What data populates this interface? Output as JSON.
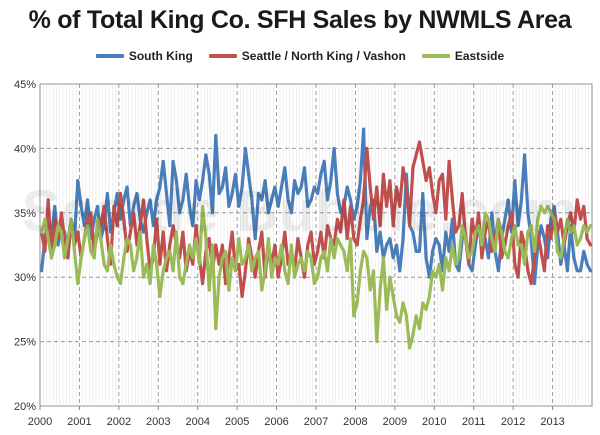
{
  "watermark": "Seattle Bubble.com",
  "chart_data": {
    "type": "line",
    "title": "% of Total King Co. SFH Sales by NWMLS Area",
    "xlabel": "",
    "ylabel": "",
    "ylim": [
      20,
      45
    ],
    "y_ticks": [
      "20%",
      "25%",
      "30%",
      "35%",
      "40%",
      "45%"
    ],
    "y_tick_values": [
      20,
      25,
      30,
      35,
      40,
      45
    ],
    "x_tick_labels": [
      "2000",
      "2001",
      "2002",
      "2003",
      "2004",
      "2005",
      "2006",
      "2007",
      "2008",
      "2009",
      "2010",
      "2011",
      "2012",
      "2013"
    ],
    "x_start_year": 2000,
    "months": 168,
    "grid": true,
    "legend_position": "top",
    "series": [
      {
        "name": "South King",
        "color": "#4a7ebb",
        "values": [
          30.5,
          33.0,
          34.5,
          33.0,
          35.5,
          32.5,
          34.0,
          33.5,
          31.5,
          34.5,
          33.0,
          37.5,
          35.5,
          34.0,
          36.0,
          33.0,
          34.5,
          35.5,
          33.0,
          34.0,
          36.5,
          33.5,
          35.0,
          36.5,
          34.5,
          36.0,
          37.0,
          34.0,
          35.5,
          36.5,
          34.5,
          33.5,
          35.0,
          36.0,
          34.0,
          36.0,
          37.0,
          39.0,
          36.5,
          34.0,
          39.0,
          37.5,
          35.0,
          36.0,
          38.0,
          35.5,
          34.0,
          37.5,
          36.0,
          37.5,
          39.5,
          38.0,
          35.0,
          41.0,
          36.5,
          37.0,
          38.5,
          35.5,
          36.5,
          38.0,
          35.5,
          37.0,
          40.0,
          38.0,
          36.0,
          33.0,
          36.5,
          36.0,
          37.5,
          35.0,
          36.0,
          37.0,
          35.5,
          37.0,
          38.5,
          36.0,
          35.0,
          37.5,
          36.5,
          37.0,
          38.5,
          35.5,
          36.0,
          37.0,
          36.5,
          38.0,
          39.0,
          36.0,
          37.5,
          40.0,
          36.5,
          35.0,
          35.5,
          37.0,
          36.0,
          34.5,
          35.5,
          37.5,
          41.5,
          33.0,
          35.5,
          36.0,
          32.0,
          33.5,
          31.5,
          32.5,
          33.0,
          31.5,
          32.5,
          30.5,
          33.0,
          38.0,
          34.0,
          33.5,
          32.0,
          32.0,
          36.5,
          31.5,
          30.0,
          32.0,
          33.0,
          32.5,
          30.5,
          33.5,
          32.0,
          34.5,
          31.0,
          30.5,
          33.0,
          33.5,
          31.0,
          30.5,
          32.5,
          34.0,
          32.5,
          33.0,
          31.5,
          35.0,
          32.0,
          30.5,
          33.0,
          34.5,
          36.0,
          33.5,
          37.5,
          34.0,
          36.0,
          39.5,
          35.0,
          33.0,
          29.5,
          32.5,
          34.0,
          33.0,
          31.5,
          34.5,
          35.5,
          33.5,
          31.0,
          32.5,
          30.5,
          34.0,
          31.5,
          30.5,
          30.5,
          32.0,
          31.0,
          30.5
        ]
      },
      {
        "name": "Seattle / North King / Vashon",
        "color": "#c0504d",
        "values": [
          33.5,
          32.0,
          36.0,
          31.5,
          34.5,
          33.0,
          35.0,
          33.0,
          31.5,
          34.5,
          32.5,
          33.5,
          31.5,
          33.0,
          34.5,
          35.0,
          32.0,
          33.5,
          34.0,
          35.5,
          33.0,
          31.0,
          35.5,
          34.0,
          36.5,
          34.5,
          32.0,
          33.5,
          35.0,
          32.5,
          34.0,
          36.0,
          33.0,
          30.5,
          31.5,
          34.5,
          31.0,
          33.5,
          30.5,
          32.5,
          34.0,
          32.5,
          31.5,
          33.5,
          30.5,
          32.0,
          31.0,
          34.0,
          31.5,
          29.5,
          32.0,
          33.0,
          30.5,
          32.5,
          31.0,
          32.5,
          29.5,
          31.5,
          33.5,
          30.5,
          31.0,
          28.5,
          30.5,
          33.0,
          31.5,
          30.0,
          32.0,
          33.5,
          30.0,
          32.5,
          31.0,
          32.5,
          30.0,
          31.5,
          33.5,
          31.0,
          32.0,
          30.5,
          33.0,
          31.5,
          30.0,
          32.5,
          33.5,
          31.0,
          32.0,
          33.5,
          31.5,
          34.0,
          33.0,
          32.5,
          34.5,
          33.5,
          36.0,
          33.0,
          35.5,
          33.0,
          32.5,
          34.5,
          36.0,
          40.0,
          37.0,
          34.5,
          37.0,
          34.0,
          38.0,
          35.5,
          37.5,
          34.0,
          37.0,
          35.5,
          38.5,
          37.0,
          34.0,
          38.5,
          39.5,
          40.5,
          39.0,
          37.5,
          38.5,
          36.5,
          35.0,
          37.5,
          38.0,
          34.5,
          39.0,
          36.0,
          33.5,
          34.0,
          36.5,
          33.0,
          31.0,
          34.5,
          33.0,
          35.0,
          31.5,
          33.5,
          34.5,
          32.0,
          33.0,
          34.5,
          31.5,
          32.5,
          34.0,
          35.0,
          31.0,
          30.0,
          33.5,
          32.5,
          30.5,
          29.5,
          31.5,
          33.5,
          32.0,
          30.5,
          34.0,
          33.0,
          35.0,
          33.5,
          34.5,
          32.5,
          34.0,
          35.0,
          33.5,
          36.0,
          34.5,
          35.5,
          33.0,
          32.5
        ]
      },
      {
        "name": "Eastside",
        "color": "#9bbb59",
        "values": [
          33.5,
          34.5,
          33.0,
          31.5,
          32.5,
          34.0,
          33.5,
          31.5,
          33.0,
          34.5,
          32.0,
          29.5,
          31.5,
          33.0,
          34.0,
          32.0,
          31.5,
          34.5,
          33.0,
          31.0,
          30.5,
          32.5,
          31.0,
          30.0,
          29.5,
          31.5,
          33.0,
          32.5,
          30.5,
          31.5,
          33.5,
          30.0,
          31.0,
          29.5,
          32.5,
          31.0,
          28.5,
          30.5,
          31.5,
          32.0,
          30.5,
          33.5,
          30.0,
          29.5,
          31.0,
          32.5,
          31.5,
          33.0,
          31.0,
          35.5,
          33.0,
          29.0,
          32.5,
          26.0,
          30.0,
          31.5,
          32.0,
          29.0,
          31.5,
          30.5,
          33.0,
          31.0,
          31.5,
          32.5,
          30.5,
          31.5,
          32.0,
          29.0,
          30.5,
          33.0,
          30.0,
          31.5,
          31.0,
          32.5,
          30.5,
          29.5,
          32.5,
          30.0,
          31.0,
          31.5,
          30.5,
          32.0,
          31.5,
          29.5,
          30.0,
          31.5,
          32.0,
          30.5,
          33.0,
          31.5,
          33.0,
          32.5,
          32.0,
          30.5,
          33.0,
          27.0,
          28.0,
          30.5,
          32.0,
          31.5,
          29.0,
          30.5,
          25.0,
          29.0,
          31.5,
          27.5,
          30.0,
          28.5,
          27.0,
          26.5,
          28.0,
          27.0,
          24.5,
          25.5,
          27.0,
          26.0,
          28.0,
          27.5,
          28.5,
          30.5,
          30.0,
          31.0,
          29.0,
          31.5,
          30.5,
          32.5,
          31.0,
          31.5,
          34.0,
          33.0,
          31.5,
          32.0,
          33.5,
          34.0,
          32.5,
          35.0,
          34.5,
          33.0,
          32.0,
          34.5,
          33.5,
          32.0,
          31.5,
          33.0,
          34.0,
          32.5,
          32.5,
          31.0,
          33.5,
          34.0,
          32.0,
          34.5,
          35.5,
          35.0,
          35.5,
          35.0,
          34.5,
          32.0,
          31.5,
          33.0,
          34.5,
          33.5,
          34.0,
          32.5,
          33.0,
          34.0,
          33.5,
          34.0
        ]
      }
    ]
  }
}
